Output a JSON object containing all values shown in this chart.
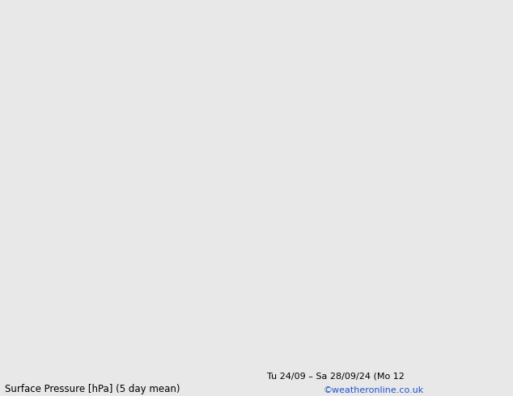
{
  "title_left": "Surface Pressure [hPa] (5 day mean)",
  "title_right": "Tu 24/09 – Sa 28/09/24 (Mo 12",
  "credit": "©weatheronline.co.uk",
  "bg_ocean": "#e0e0e0",
  "land_color": "#c8edbb",
  "coast_color": "#888888",
  "border_color": "#aaaaaa",
  "isobar_color": "#2255cc",
  "label_fontsize": 8.5,
  "credit_color": "#2255cc",
  "lon_min": -14,
  "lon_max": 22,
  "lat_min": 44,
  "lat_max": 67
}
